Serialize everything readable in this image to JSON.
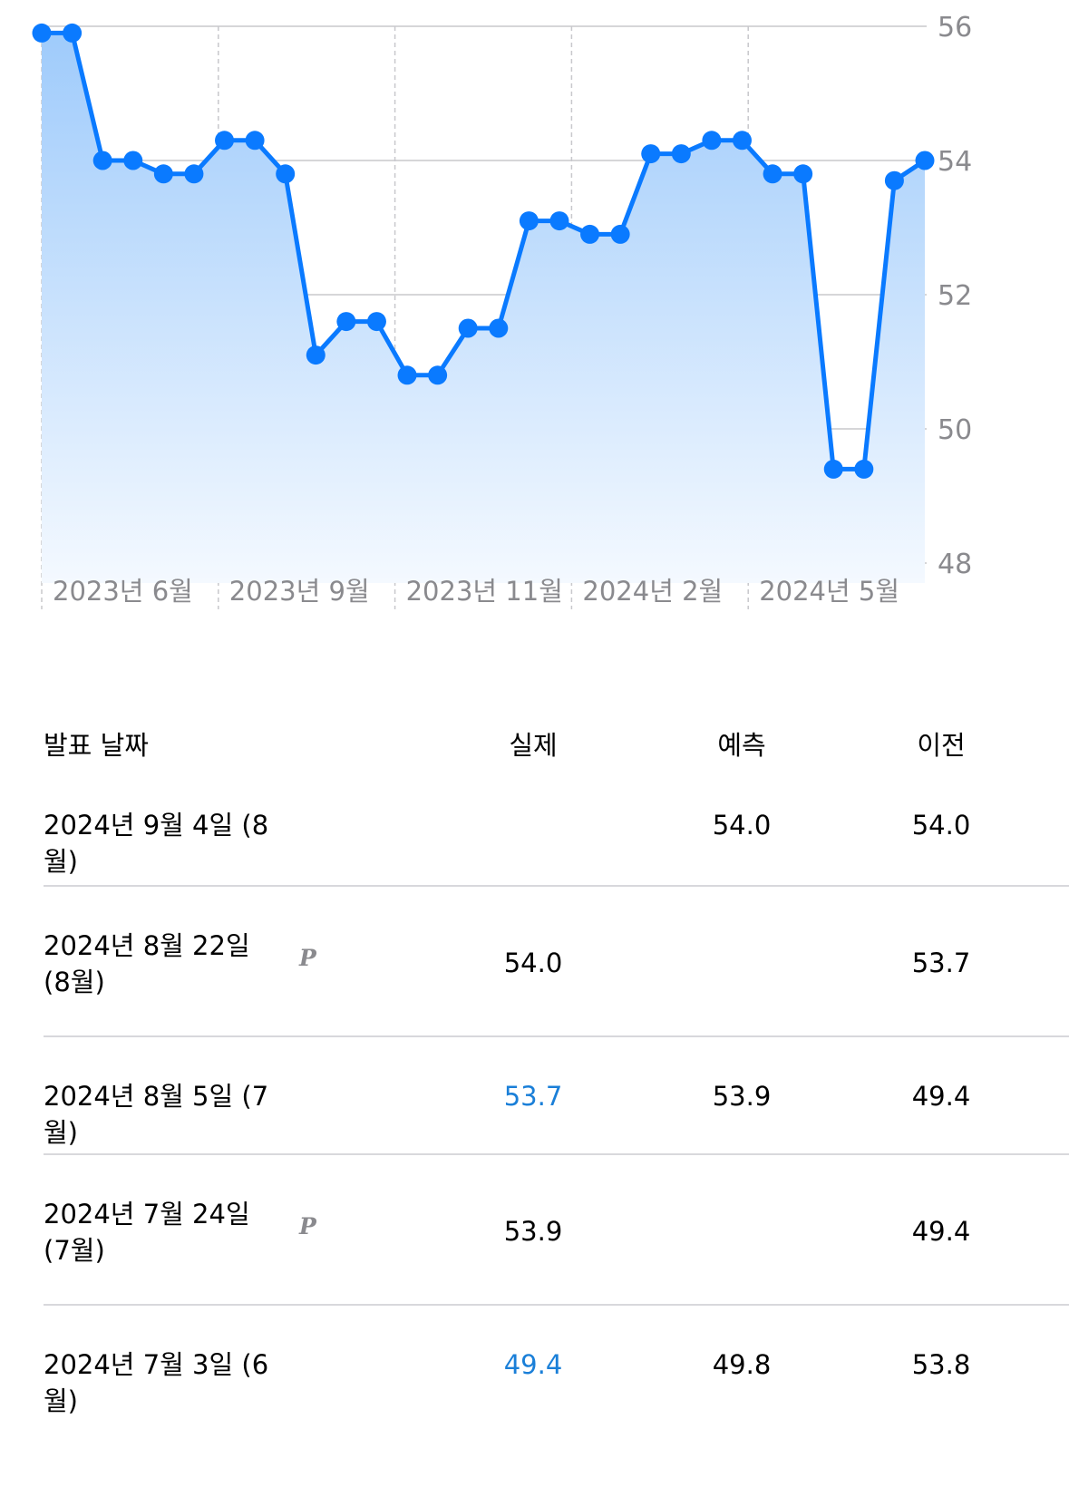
{
  "chart_data": {
    "type": "line",
    "x_labels": [
      "2023년 6월",
      "2023년 9월",
      "2023년 11월",
      "2024년 2월",
      "2024년 5월"
    ],
    "y_ticks": [
      56,
      54,
      52,
      50,
      48
    ],
    "ylim": [
      48,
      56
    ],
    "grid": true,
    "series": [
      {
        "values": [
          55.9,
          55.9,
          54.0,
          54.0,
          53.8,
          53.8,
          54.3,
          54.3,
          53.8,
          51.1,
          51.6,
          51.6,
          50.8,
          50.8,
          51.5,
          51.5,
          53.1,
          53.1,
          52.9,
          52.9,
          54.1,
          54.1,
          54.3,
          54.3,
          53.8,
          53.8,
          49.4,
          49.4,
          53.7,
          54.0
        ]
      }
    ],
    "colors": {
      "line": "#0a7aff",
      "fill_top": "#9fcbfb",
      "fill_bottom": "#f4f9ff"
    }
  },
  "table": {
    "headers": {
      "date": "발표 날짜",
      "actual": "실제",
      "forecast": "예측",
      "previous": "이전"
    },
    "rows": [
      {
        "date": "2024년 9월 4일 (8월)",
        "prelim": "",
        "actual": "",
        "forecast": "54.0",
        "previous": "54.0"
      },
      {
        "date": "2024년 8월 22일 (8월)",
        "prelim": "P",
        "actual": "54.0",
        "forecast": "",
        "previous": "53.7"
      },
      {
        "date": "2024년 8월 5일 (7월)",
        "prelim": "",
        "actual": "53.7",
        "forecast": "53.9",
        "previous": "49.4"
      },
      {
        "date": "2024년 7월 24일 (7월)",
        "prelim": "P",
        "actual": "53.9",
        "forecast": "",
        "previous": "49.4"
      },
      {
        "date": "2024년 7월 3일 (6월)",
        "prelim": "",
        "actual": "49.4",
        "forecast": "49.8",
        "previous": "53.8"
      }
    ],
    "highlight_color": "#1a7fd8"
  }
}
